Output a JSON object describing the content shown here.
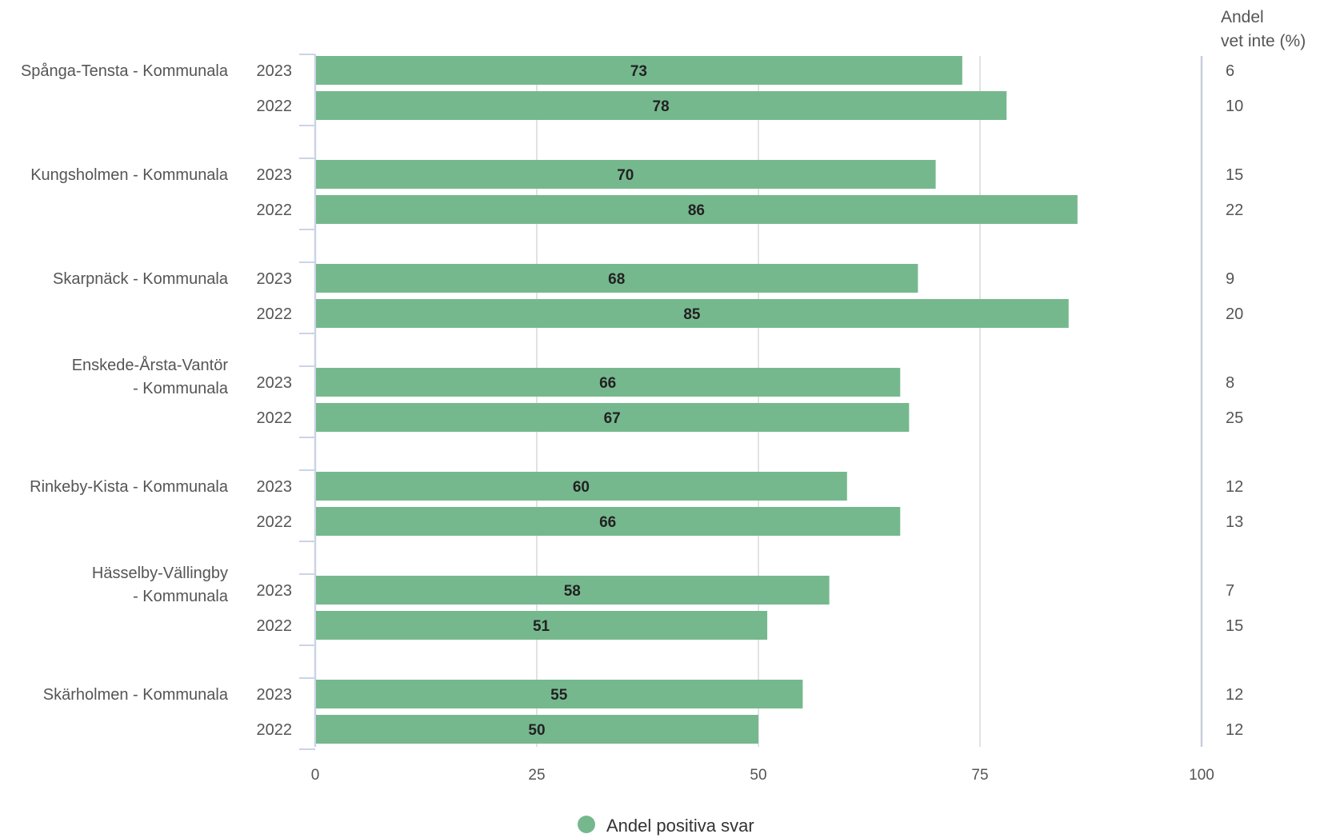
{
  "chart_data": {
    "type": "bar",
    "orientation": "horizontal",
    "xlim": [
      0,
      100
    ],
    "x_ticks": [
      "0",
      "25",
      "50",
      "75",
      "100"
    ],
    "grid": true,
    "legend": {
      "placement": "bottom-center",
      "label": "Andel positiva svar"
    },
    "right_column_header": [
      "Andel",
      "vet inte (%)"
    ],
    "bar_color": "#76b88e",
    "groups": [
      {
        "label": [
          "Spånga-Tensta - Kommunala"
        ],
        "rows": [
          {
            "year": "2023",
            "value": 73,
            "vet_inte": "6"
          },
          {
            "year": "2022",
            "value": 78,
            "vet_inte": "10"
          }
        ]
      },
      {
        "label": [
          "Kungsholmen - Kommunala"
        ],
        "rows": [
          {
            "year": "2023",
            "value": 70,
            "vet_inte": "15"
          },
          {
            "year": "2022",
            "value": 86,
            "vet_inte": "22"
          }
        ]
      },
      {
        "label": [
          "Skarpnäck - Kommunala"
        ],
        "rows": [
          {
            "year": "2023",
            "value": 68,
            "vet_inte": "9"
          },
          {
            "year": "2022",
            "value": 85,
            "vet_inte": "20"
          }
        ]
      },
      {
        "label": [
          "Enskede-Årsta-Vantör",
          "- Kommunala"
        ],
        "rows": [
          {
            "year": "2023",
            "value": 66,
            "vet_inte": "8"
          },
          {
            "year": "2022",
            "value": 67,
            "vet_inte": "25"
          }
        ]
      },
      {
        "label": [
          "Rinkeby-Kista - Kommunala"
        ],
        "rows": [
          {
            "year": "2023",
            "value": 60,
            "vet_inte": "12"
          },
          {
            "year": "2022",
            "value": 66,
            "vet_inte": "13"
          }
        ]
      },
      {
        "label": [
          "Hässelby-Vällingby",
          "- Kommunala"
        ],
        "rows": [
          {
            "year": "2023",
            "value": 58,
            "vet_inte": "7"
          },
          {
            "year": "2022",
            "value": 51,
            "vet_inte": "15"
          }
        ]
      },
      {
        "label": [
          "Skärholmen - Kommunala"
        ],
        "rows": [
          {
            "year": "2023",
            "value": 55,
            "vet_inte": "12"
          },
          {
            "year": "2022",
            "value": 50,
            "vet_inte": "12"
          }
        ]
      }
    ]
  }
}
